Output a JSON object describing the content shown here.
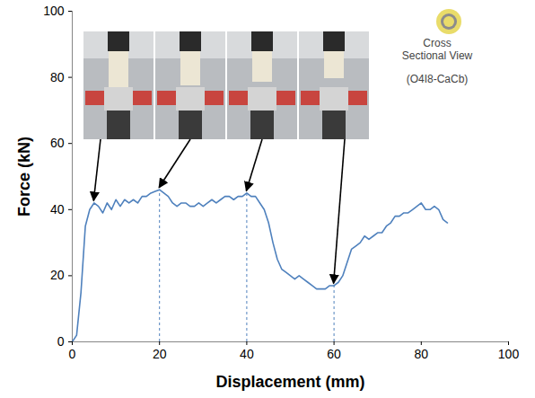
{
  "chart_data": {
    "type": "line",
    "x_label": "Displacement (mm)",
    "y_label": "Force (kN)",
    "xlim": [
      0,
      100
    ],
    "xticks": [
      0,
      20,
      40,
      60,
      80,
      100
    ],
    "ylim": [
      0,
      100
    ],
    "yticks": [
      0,
      20,
      40,
      60,
      80,
      100
    ],
    "grid": false,
    "color": "#4f81bd",
    "x": [
      0,
      1,
      2,
      3,
      4,
      5,
      6,
      7,
      8,
      9,
      10,
      11,
      12,
      13,
      14,
      15,
      16,
      17,
      18,
      19,
      20,
      21,
      22,
      23,
      24,
      25,
      26,
      27,
      28,
      29,
      30,
      31,
      32,
      33,
      34,
      35,
      36,
      37,
      38,
      39,
      40,
      41,
      42,
      43,
      44,
      45,
      46,
      47,
      48,
      49,
      50,
      51,
      52,
      53,
      54,
      55,
      56,
      57,
      58,
      59,
      60,
      61,
      62,
      63,
      64,
      65,
      66,
      67,
      68,
      69,
      70,
      71,
      72,
      73,
      74,
      75,
      76,
      77,
      78,
      79,
      80,
      81,
      82,
      83,
      84,
      85,
      86
    ],
    "values": [
      0,
      2,
      15,
      35,
      40,
      42,
      41,
      39,
      42,
      40,
      43,
      41,
      43,
      42,
      43,
      42,
      44,
      44,
      45,
      45.5,
      46,
      45,
      44,
      42,
      41,
      42,
      42,
      41,
      41,
      42,
      41,
      42,
      43,
      42,
      43,
      44,
      44,
      43,
      44,
      44,
      45,
      44,
      44,
      42,
      40,
      36,
      30,
      25,
      22,
      21,
      20,
      19,
      20,
      19,
      18,
      17,
      16,
      16,
      16,
      17,
      17,
      18,
      20,
      24,
      28,
      29,
      30,
      32,
      31,
      32,
      33,
      33,
      35,
      36,
      38,
      38,
      39,
      39,
      40,
      41,
      42,
      40,
      40,
      41,
      40,
      37,
      36
    ],
    "photo_points": [
      {
        "x": 5,
        "y": 42
      },
      {
        "x": 20,
        "y": 46
      },
      {
        "x": 40,
        "y": 45
      },
      {
        "x": 60,
        "y": 17
      }
    ],
    "dashed_lines": [
      20,
      40,
      60
    ],
    "annotations": [
      "Cross Sectional View",
      "(O4I8-CaCb)"
    ]
  }
}
